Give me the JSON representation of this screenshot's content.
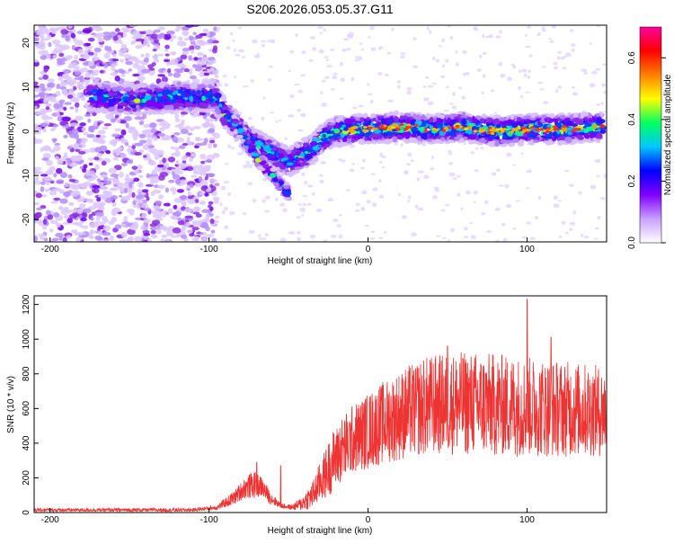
{
  "title": "S206.2026.053.05.37.G11",
  "colors": {
    "axis": "#000000",
    "snr_line": "#ee3333",
    "background": "#ffffff"
  },
  "chart_data": [
    {
      "type": "heatmap",
      "name": "spectrogram",
      "xlabel": "Height of straight line (km)",
      "ylabel": "Frequency (Hz)",
      "xlim": [
        -210,
        150
      ],
      "ylim": [
        -25,
        24
      ],
      "xticks": [
        -200,
        -100,
        0,
        100
      ],
      "xtick_labels": [
        "-200",
        "-100",
        "0",
        "100"
      ],
      "yticks": [
        -20,
        -10,
        0,
        10,
        20
      ],
      "ytick_labels": [
        "-20",
        "-10",
        "0",
        "10",
        "20"
      ],
      "colorbar": {
        "label": "Normalized spectral amplitude",
        "range": [
          0.0,
          0.7
        ],
        "ticks": [
          0.0,
          0.2,
          0.4,
          0.6
        ],
        "tick_labels": [
          "0.0",
          "0.2",
          "0.4",
          "0.6"
        ],
        "colors": [
          "#ffffff",
          "#c8a0ff",
          "#8000ff",
          "#0000ff",
          "#00c8ff",
          "#00ff60",
          "#ffff00",
          "#ff8000",
          "#ff0000",
          "#ff00a0"
        ]
      },
      "tracks": [
        {
          "name": "main",
          "x": [
            -175,
            -150,
            -130,
            -120,
            -110,
            -100,
            -95,
            -90,
            -85,
            -80,
            -75,
            -70,
            -65,
            -60,
            -55,
            -50,
            -45,
            -40,
            -35,
            -30,
            -25,
            -20,
            -15,
            -10,
            0,
            20,
            40,
            60,
            80,
            100,
            120,
            140,
            148
          ],
          "y": [
            8,
            7,
            7.5,
            8,
            7.5,
            8,
            7,
            4,
            2,
            0,
            -2,
            -3,
            -4,
            -5,
            -6,
            -7,
            -6,
            -5,
            -4,
            -2,
            -1,
            0,
            0,
            0.5,
            0.5,
            1,
            0.5,
            1,
            0,
            0.5,
            0.5,
            1,
            1
          ]
        },
        {
          "name": "branch",
          "x": [
            -85,
            -80,
            -75,
            -70,
            -65,
            -60,
            -55,
            -50
          ],
          "y": [
            2,
            0,
            -3,
            -6,
            -8,
            -10,
            -12,
            -14
          ]
        }
      ]
    },
    {
      "type": "line",
      "name": "snr",
      "xlabel": "Height of straight line (km)",
      "ylabel": "SNR (10 * v/v)",
      "xlim": [
        -210,
        150
      ],
      "ylim": [
        0,
        1250
      ],
      "xticks": [
        -200,
        -100,
        0,
        100
      ],
      "xtick_labels": [
        "-200",
        "-100",
        "0",
        "100"
      ],
      "yticks": [
        0,
        200,
        400,
        600,
        800,
        1000,
        1200
      ],
      "ytick_labels": [
        "0",
        "200",
        "400",
        "600",
        "800",
        "1000",
        "1200"
      ],
      "envelope": {
        "x": [
          -210,
          -110,
          -95,
          -85,
          -78,
          -72,
          -67,
          -62,
          -55,
          -48,
          -42,
          -35,
          -30,
          -25,
          -20,
          -10,
          0,
          10,
          20,
          30,
          40,
          60,
          80,
          100,
          120,
          140,
          150
        ],
        "center": [
          15,
          15,
          30,
          80,
          140,
          160,
          150,
          90,
          40,
          30,
          50,
          100,
          180,
          250,
          330,
          420,
          470,
          520,
          560,
          600,
          620,
          630,
          620,
          610,
          600,
          590,
          580
        ],
        "spread": [
          10,
          10,
          15,
          40,
          60,
          80,
          60,
          40,
          15,
          15,
          40,
          80,
          120,
          160,
          190,
          200,
          220,
          240,
          260,
          280,
          290,
          300,
          300,
          290,
          280,
          270,
          260
        ],
        "peaks": [
          [
            -70,
            290
          ],
          [
            -55,
            270
          ],
          [
            -20,
            440
          ],
          [
            30,
            830
          ],
          [
            50,
            960
          ],
          [
            100,
            1230
          ],
          [
            115,
            1010
          ]
        ]
      }
    }
  ]
}
